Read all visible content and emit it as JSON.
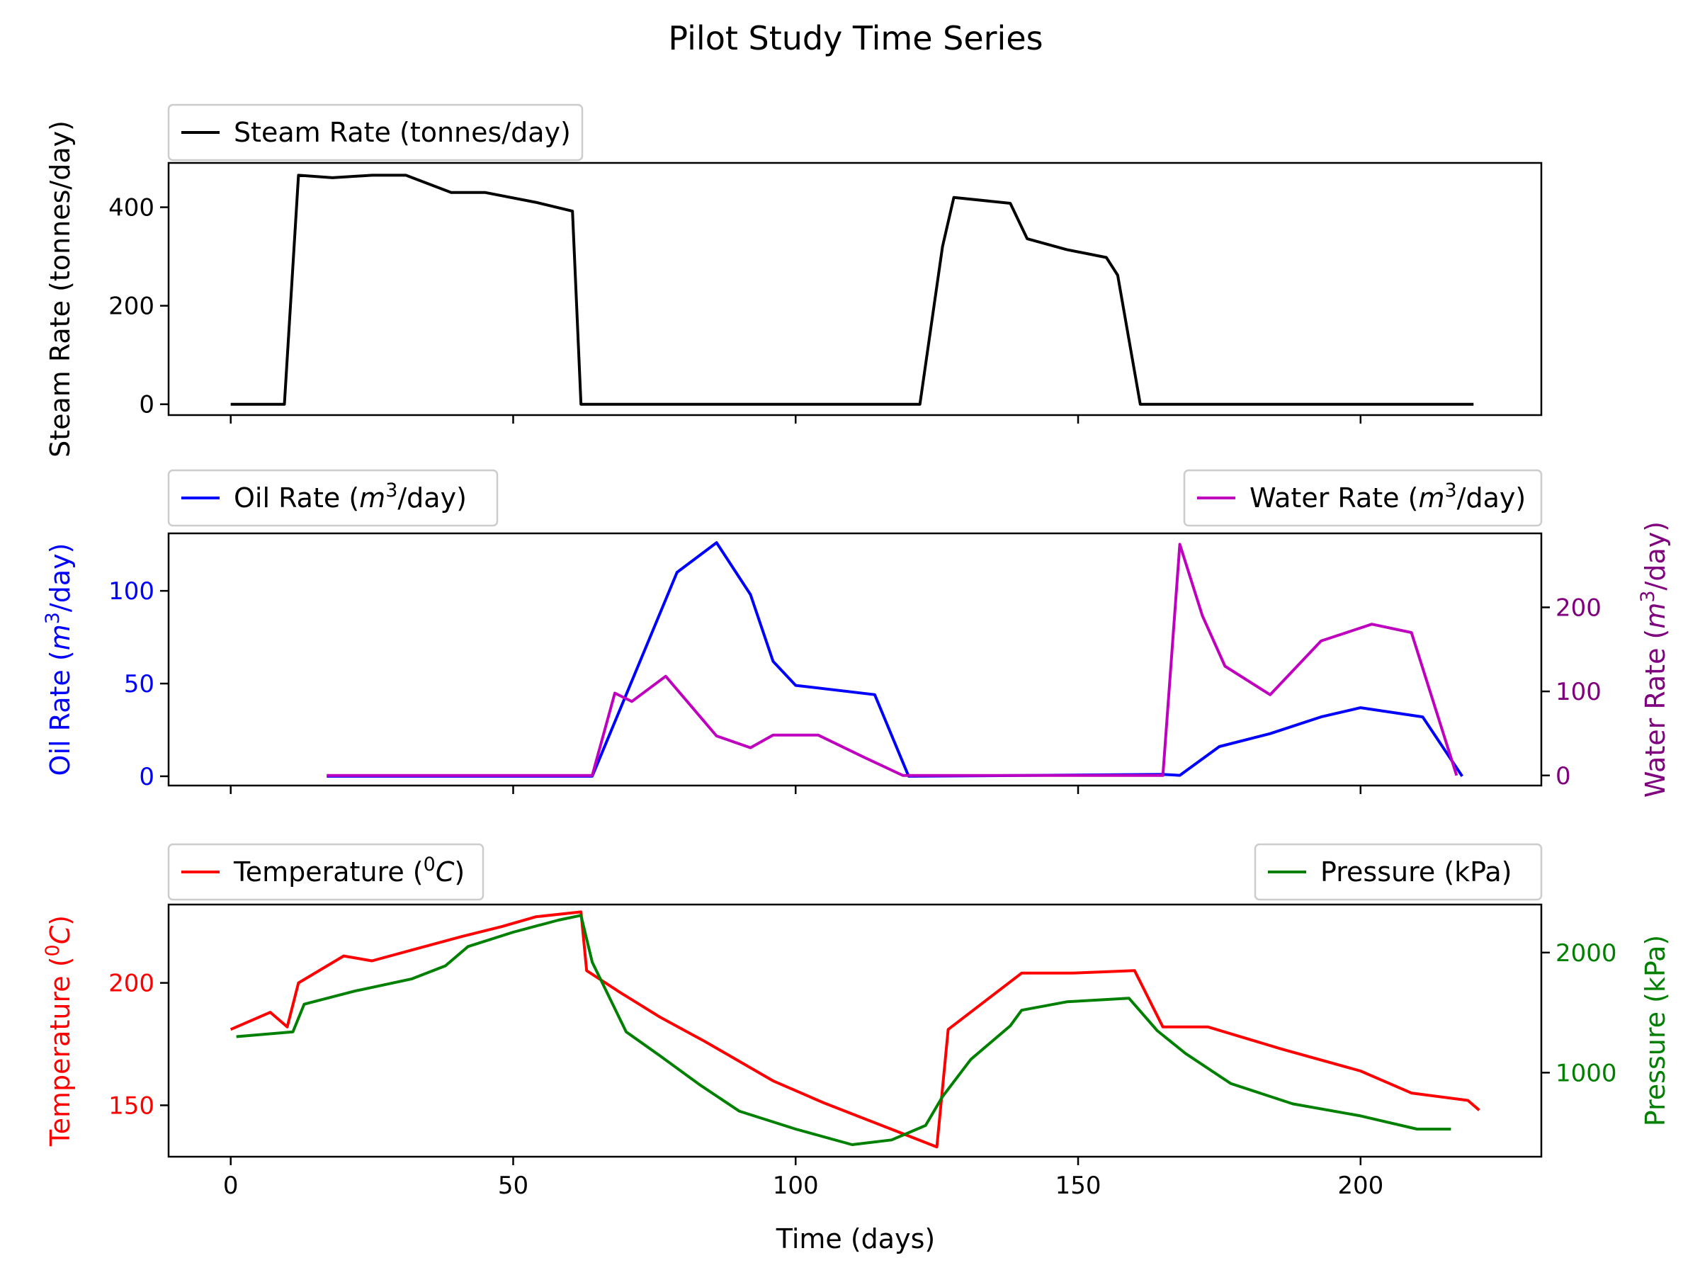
{
  "chart_data": {
    "type": "line",
    "title": "Pilot Study Time Series",
    "xlabel": "Time (days)",
    "xlim": [
      -11,
      232
    ],
    "xticks": [
      0,
      50,
      100,
      150,
      200
    ],
    "panels": [
      {
        "id": "steam",
        "left_axis": {
          "label": "Steam Rate (tonnes/day)",
          "color": "#000000",
          "ylim": [
            -22,
            490
          ],
          "ticks": [
            0,
            200,
            400
          ]
        },
        "series": [
          {
            "name": "Steam Rate (tonnes/day)",
            "axis": "left",
            "color": "#000000",
            "x": [
              0,
              9.5,
              12,
              18,
              25,
              31,
              39,
              45,
              54,
              60.5,
              62,
              122,
              126,
              128,
              138,
              141,
              148,
              155,
              157,
              161,
              220
            ],
            "y": [
              0,
              0,
              465,
              460,
              465,
              465,
              430,
              430,
              410,
              392,
              0,
              0,
              320,
              420,
              408,
              336,
              314,
              298,
              262,
              0,
              0
            ]
          }
        ]
      },
      {
        "id": "rates",
        "left_axis": {
          "label": "Oil Rate (m³/day)",
          "label_main": "Oil Rate (",
          "label_italic": "m",
          "label_sup": "3",
          "label_tail": "/day)",
          "color": "#0000ff",
          "ylim": [
            -5,
            131
          ],
          "ticks": [
            0,
            50,
            100
          ]
        },
        "right_axis": {
          "label": "Water Rate (m³/day)",
          "label_main": "Water Rate (",
          "label_italic": "m",
          "label_sup": "3",
          "label_tail": "/day)",
          "color": "#800080",
          "ylim": [
            -12,
            288
          ],
          "ticks": [
            0,
            100,
            200
          ]
        },
        "series": [
          {
            "name": "Oil Rate (m³/day)",
            "axis": "left",
            "color": "#0000ff",
            "x": [
              17,
              64,
              79,
              86,
              92,
              96,
              100,
              114,
              120,
              165,
              168,
              175,
              184,
              193,
              200,
              211,
              218
            ],
            "y": [
              0,
              0,
              110,
              126,
              98,
              62,
              49,
              44,
              0,
              1,
              0.5,
              16,
              23,
              32,
              37,
              32,
              0
            ]
          },
          {
            "name": "Water Rate (m³/day)",
            "axis": "right",
            "color": "#bf00bf",
            "x": [
              17,
              64,
              68,
              71,
              77,
              86,
              92,
              96,
              104,
              112,
              119,
              165,
              168,
              172,
              176,
              184,
              193,
              202,
              209,
              217
            ],
            "y": [
              0,
              0,
              98,
              88,
              118,
              47,
              33,
              48,
              48,
              22,
              0,
              0,
              275,
              190,
              130,
              96,
              160,
              180,
              170,
              0
            ]
          }
        ]
      },
      {
        "id": "temp_pressure",
        "left_axis": {
          "label": "Temperature (⁰C)",
          "label_main": "Temperature (",
          "label_sup": "0",
          "label_italic": "C",
          "label_tail": ")",
          "color": "#ff0000",
          "ylim": [
            129,
            232
          ],
          "ticks": [
            150,
            200
          ]
        },
        "right_axis": {
          "label": "Pressure (kPa)",
          "color": "#008000",
          "ylim": [
            300,
            2400
          ],
          "ticks": [
            1000,
            2000
          ]
        },
        "series": [
          {
            "name": "Temperature (⁰C)",
            "axis": "left",
            "color": "#ff0000",
            "x": [
              0,
              7,
              10,
              12,
              20,
              25,
              33,
              41,
              48,
              54,
              62,
              63,
              69,
              76,
              84,
              96,
              105,
              115,
              125,
              127,
              140,
              149,
              160,
              165,
              173,
              186,
              200,
              209,
              219,
              221
            ],
            "y": [
              181,
              188,
              182,
              200,
              211,
              209,
              214,
              219,
              223,
              227,
              229,
              205,
              196,
              186,
              176,
              160,
              151,
              142,
              133,
              181,
              204,
              204,
              205,
              182,
              182,
              173,
              164,
              155,
              152,
              148
            ]
          },
          {
            "name": "Pressure (kPa)",
            "axis": "right",
            "color": "#008000",
            "x": [
              1,
              6,
              11,
              13,
              22,
              32,
              38,
              42,
              50,
              58,
              62,
              64,
              70,
              76,
              83,
              90,
              100,
              110,
              117,
              123,
              126,
              131,
              138,
              140,
              148,
              159,
              164,
              169,
              177,
              188,
              200,
              210,
              216
            ],
            "y": [
              1300,
              1320,
              1340,
              1570,
              1680,
              1780,
              1890,
              2050,
              2170,
              2270,
              2310,
              1920,
              1340,
              1140,
              900,
              680,
              530,
              400,
              440,
              560,
              800,
              1110,
              1390,
              1520,
              1590,
              1620,
              1350,
              1160,
              910,
              740,
              640,
              530,
              530
            ]
          }
        ]
      }
    ]
  }
}
